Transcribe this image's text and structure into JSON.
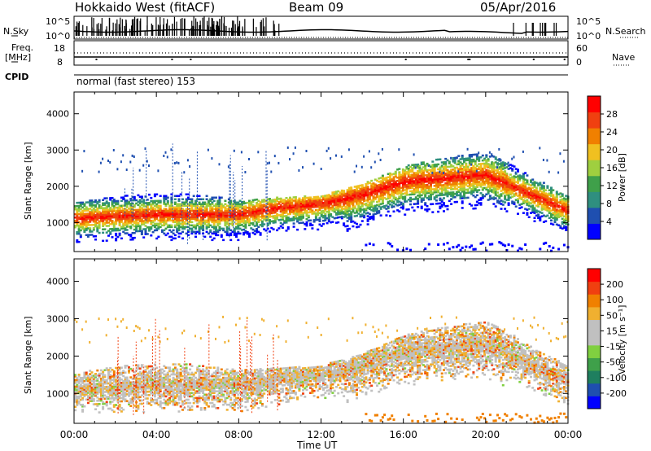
{
  "header": {
    "station": "Hokkaido West (fitACF)",
    "beam": "Beam 09",
    "date": "05/Apr/2016"
  },
  "top_panel": {
    "nsky_label": "N.Sky",
    "nsearch_label": "N.Search",
    "freq_label": "Freq.",
    "freq_unit": "[MHz]",
    "nave_label": "Nave",
    "cpid_label": "CPID",
    "cpid_value": "normal (fast stereo) 153",
    "nsky_ticks": [
      "10^5",
      "10^0"
    ],
    "nsearch_ticks": [
      "10^5",
      "10^0"
    ],
    "freq_ticks": [
      "18",
      "8"
    ],
    "nave_ticks": [
      "60",
      "0"
    ]
  },
  "colors": {
    "power_scale": [
      "#0000ff",
      "#1f4fb0",
      "#2f8f7f",
      "#3fa04a",
      "#9fcf3f",
      "#f0c020",
      "#f08000",
      "#f04010",
      "#ff0000"
    ],
    "velocity_scale": [
      "#ff0000",
      "#f04010",
      "#f08000",
      "#f0b030",
      "#c0c0c0",
      "#c0c0c0",
      "#80d040",
      "#3fa04a",
      "#1f7f5f",
      "#1f4fb0",
      "#0000ff"
    ]
  },
  "chart_data": [
    {
      "type": "heatmap",
      "name": "power",
      "ylabel": "Slant Range [km]",
      "yticks": [
        "1000",
        "2000",
        "3000",
        "4000"
      ],
      "ylim": [
        200,
        4600
      ],
      "xlim": [
        0,
        24
      ],
      "colorbar_label": "Power [dB]",
      "colorbar_ticks": [
        "4",
        "8",
        "12",
        "16",
        "20",
        "24",
        "28"
      ],
      "colorbar_range": [
        0,
        30
      ],
      "band": [
        {
          "x": 0,
          "y": 1100
        },
        {
          "x": 4,
          "y": 1200
        },
        {
          "x": 8,
          "y": 1200
        },
        {
          "x": 10,
          "y": 1400
        },
        {
          "x": 12,
          "y": 1500
        },
        {
          "x": 14,
          "y": 1750
        },
        {
          "x": 16,
          "y": 2100
        },
        {
          "x": 18,
          "y": 2200
        },
        {
          "x": 20,
          "y": 2300
        },
        {
          "x": 22,
          "y": 1800
        },
        {
          "x": 24,
          "y": 1300
        }
      ]
    },
    {
      "type": "heatmap",
      "name": "velocity",
      "ylabel": "Slant Range [km]",
      "yticks": [
        "1000",
        "2000",
        "3000",
        "4000"
      ],
      "ylim": [
        200,
        4600
      ],
      "xlim": [
        0,
        24
      ],
      "xlabel": "Time UT",
      "xticks": [
        "00:00",
        "04:00",
        "08:00",
        "12:00",
        "16:00",
        "20:00",
        "00:00"
      ],
      "colorbar_label": "Velocity [m s⁻¹]",
      "colorbar_ticks": [
        "200",
        "100",
        "50",
        "15",
        "-15",
        "-50",
        "-100",
        "-200"
      ],
      "colorbar_range": [
        -250,
        250
      ]
    }
  ]
}
